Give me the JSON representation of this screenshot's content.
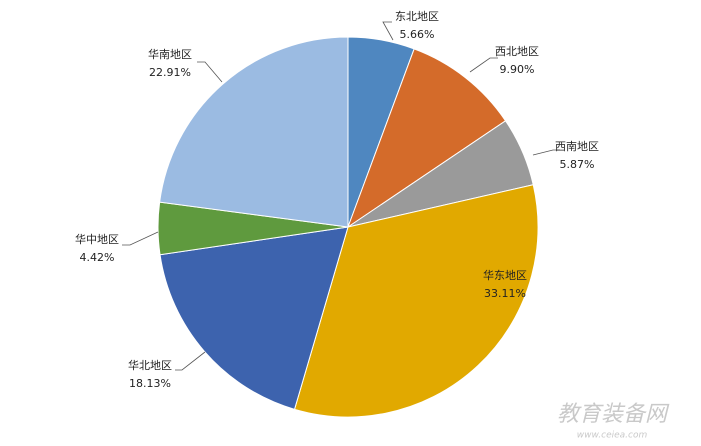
{
  "chart_data": {
    "type": "pie",
    "categories": [
      "东北地区",
      "西北地区",
      "西南地区",
      "华东地区",
      "华北地区",
      "华中地区",
      "华南地区"
    ],
    "values": [
      5.66,
      9.9,
      5.87,
      33.11,
      18.13,
      4.42,
      22.91
    ],
    "value_labels": [
      "5.66%",
      "9.90%",
      "5.87%",
      "33.11%",
      "18.13%",
      "4.42%",
      "22.91%"
    ],
    "colors": [
      "#4f87c0",
      "#d46b2a",
      "#9a9a9a",
      "#e1a900",
      "#3d63ae",
      "#5f9a3e",
      "#9bbbe2"
    ],
    "watermark": "教育装备网",
    "watermark_url": "www.ceiea.com"
  }
}
